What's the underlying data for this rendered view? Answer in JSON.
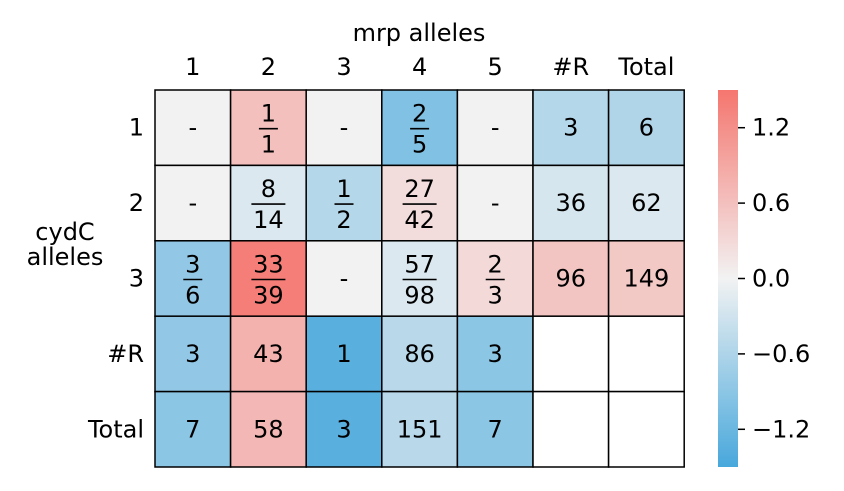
{
  "chart_data": {
    "type": "heatmap",
    "title": "mrp alleles",
    "ylabel": "cydC\nalleles",
    "col_labels": [
      "1",
      "2",
      "3",
      "4",
      "5",
      "#R",
      "Total"
    ],
    "row_labels": [
      "1",
      "2",
      "3",
      "#R",
      "Total"
    ],
    "cells": [
      [
        {
          "v": 0.0,
          "t": "-"
        },
        {
          "v": 0.6,
          "num": "1",
          "den": "1"
        },
        {
          "v": 0.0,
          "t": "-"
        },
        {
          "v": -1.0,
          "num": "2",
          "den": "5"
        },
        {
          "v": 0.0,
          "t": "-"
        },
        {
          "v": -0.55,
          "t": "3"
        },
        {
          "v": -0.58,
          "t": "6"
        }
      ],
      [
        {
          "v": 0.0,
          "t": "-"
        },
        {
          "v": -0.2,
          "num": "8",
          "den": "14"
        },
        {
          "v": -0.55,
          "num": "1",
          "den": "2"
        },
        {
          "v": 0.25,
          "num": "27",
          "den": "42"
        },
        {
          "v": 0.0,
          "t": "-"
        },
        {
          "v": -0.25,
          "t": "36"
        },
        {
          "v": -0.2,
          "t": "62"
        }
      ],
      [
        {
          "v": -0.85,
          "num": "3",
          "den": "6"
        },
        {
          "v": 1.4,
          "num": "33",
          "den": "39"
        },
        {
          "v": 0.0,
          "t": "-"
        },
        {
          "v": -0.2,
          "num": "57",
          "den": "98"
        },
        {
          "v": 0.3,
          "num": "2",
          "den": "3"
        },
        {
          "v": 0.55,
          "t": "96"
        },
        {
          "v": 0.5,
          "t": "149"
        }
      ],
      [
        {
          "v": -0.85,
          "t": "3"
        },
        {
          "v": 0.78,
          "t": "43"
        },
        {
          "v": -1.35,
          "t": "1"
        },
        {
          "v": -0.5,
          "t": "86"
        },
        {
          "v": -0.9,
          "t": "3"
        },
        {
          "v": null,
          "t": ""
        },
        {
          "v": null,
          "t": ""
        }
      ],
      [
        {
          "v": -0.9,
          "t": "7"
        },
        {
          "v": 0.7,
          "t": "58"
        },
        {
          "v": -1.35,
          "t": "3"
        },
        {
          "v": -0.5,
          "t": "151"
        },
        {
          "v": -0.9,
          "t": "7"
        },
        {
          "v": null,
          "t": ""
        },
        {
          "v": null,
          "t": ""
        }
      ]
    ],
    "colorbar": {
      "min": -1.5,
      "max": 1.5,
      "ticks": [
        1.2,
        0.6,
        0.0,
        -0.6,
        -1.2
      ],
      "tick_labels": [
        "1.2",
        "0.6",
        "0.0",
        "−0.6",
        "−1.2"
      ],
      "colors": {
        "negative": "#48a8dc",
        "neutral": "#f2f2f2",
        "positive": "#f5766f"
      }
    }
  }
}
